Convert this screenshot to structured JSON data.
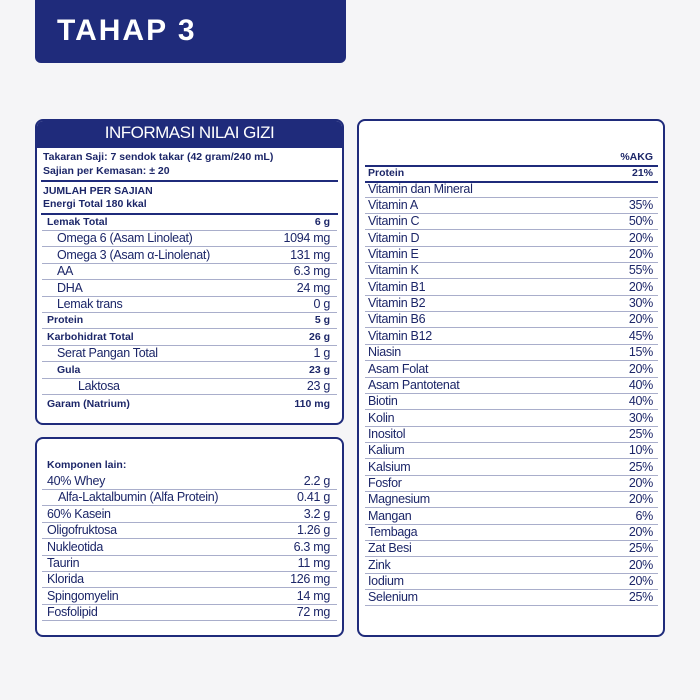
{
  "header": {
    "title": "TAHAP 3"
  },
  "nutrition": {
    "title": "INFORMASI NILAI GIZI",
    "serving_size": "Takaran Saji: 7 sendok takar (42 gram/240 mL)",
    "servings_per_container": "Sajian per Kemasan: ± 20",
    "per_serving": "JUMLAH PER SAJIAN",
    "energy": "Energi Total 180 kkal",
    "rows": [
      [
        "Lemak Total",
        "6 g"
      ],
      [
        "Omega 6 (Asam Linoleat)",
        "1094 mg"
      ],
      [
        "Omega 3 (Asam α-Linolenat)",
        "131 mg"
      ],
      [
        "AA",
        "6.3 mg"
      ],
      [
        "DHA",
        "24 mg"
      ],
      [
        "Lemak trans",
        "0 g"
      ],
      [
        "Protein",
        "5 g"
      ],
      [
        "Karbohidrat Total",
        "26 g"
      ],
      [
        "Serat Pangan Total",
        "1 g"
      ],
      [
        "Gula",
        "23 g"
      ],
      [
        "Laktosa",
        "23 g"
      ],
      [
        "Garam (Natrium)",
        "110 mg"
      ]
    ]
  },
  "other_components": {
    "title": "Komponen lain:",
    "rows": [
      [
        "40% Whey",
        "2.2 g"
      ],
      [
        "Alfa-Laktalbumin (Alfa Protein)",
        "0.41 g"
      ],
      [
        "60% Kasein",
        "3.2 g"
      ],
      [
        "Oligofruktosa",
        "1.26 g"
      ],
      [
        "Nukleotida",
        "6.3 mg"
      ],
      [
        "Taurin",
        "11 mg"
      ],
      [
        "Klorida",
        "126 mg"
      ],
      [
        "Spingomyelin",
        "14 mg"
      ],
      [
        "Fosfolipid",
        "72 mg"
      ]
    ]
  },
  "akg": {
    "column_header": "%AKG",
    "protein": [
      "Protein",
      "21%"
    ],
    "section": "Vitamin dan Mineral",
    "rows": [
      [
        "Vitamin A",
        "35%"
      ],
      [
        "Vitamin C",
        "50%"
      ],
      [
        "Vitamin D",
        "20%"
      ],
      [
        "Vitamin E",
        "20%"
      ],
      [
        "Vitamin K",
        "55%"
      ],
      [
        "Vitamin B1",
        "20%"
      ],
      [
        "Vitamin B2",
        "30%"
      ],
      [
        "Vitamin B6",
        "20%"
      ],
      [
        "Vitamin B12",
        "45%"
      ],
      [
        "Niasin",
        "15%"
      ],
      [
        "Asam Folat",
        "20%"
      ],
      [
        "Asam Pantotenat",
        "40%"
      ],
      [
        "Biotin",
        "40%"
      ],
      [
        "Kolin",
        "30%"
      ],
      [
        "Inositol",
        "25%"
      ],
      [
        "Kalium",
        "10%"
      ],
      [
        "Kalsium",
        "25%"
      ],
      [
        "Fosfor",
        "20%"
      ],
      [
        "Magnesium",
        "20%"
      ],
      [
        "Mangan",
        "6%"
      ],
      [
        "Tembaga",
        "20%"
      ],
      [
        "Zat Besi",
        "25%"
      ],
      [
        "Zink",
        "20%"
      ],
      [
        "Iodium",
        "20%"
      ],
      [
        "Selenium",
        "25%"
      ]
    ]
  }
}
